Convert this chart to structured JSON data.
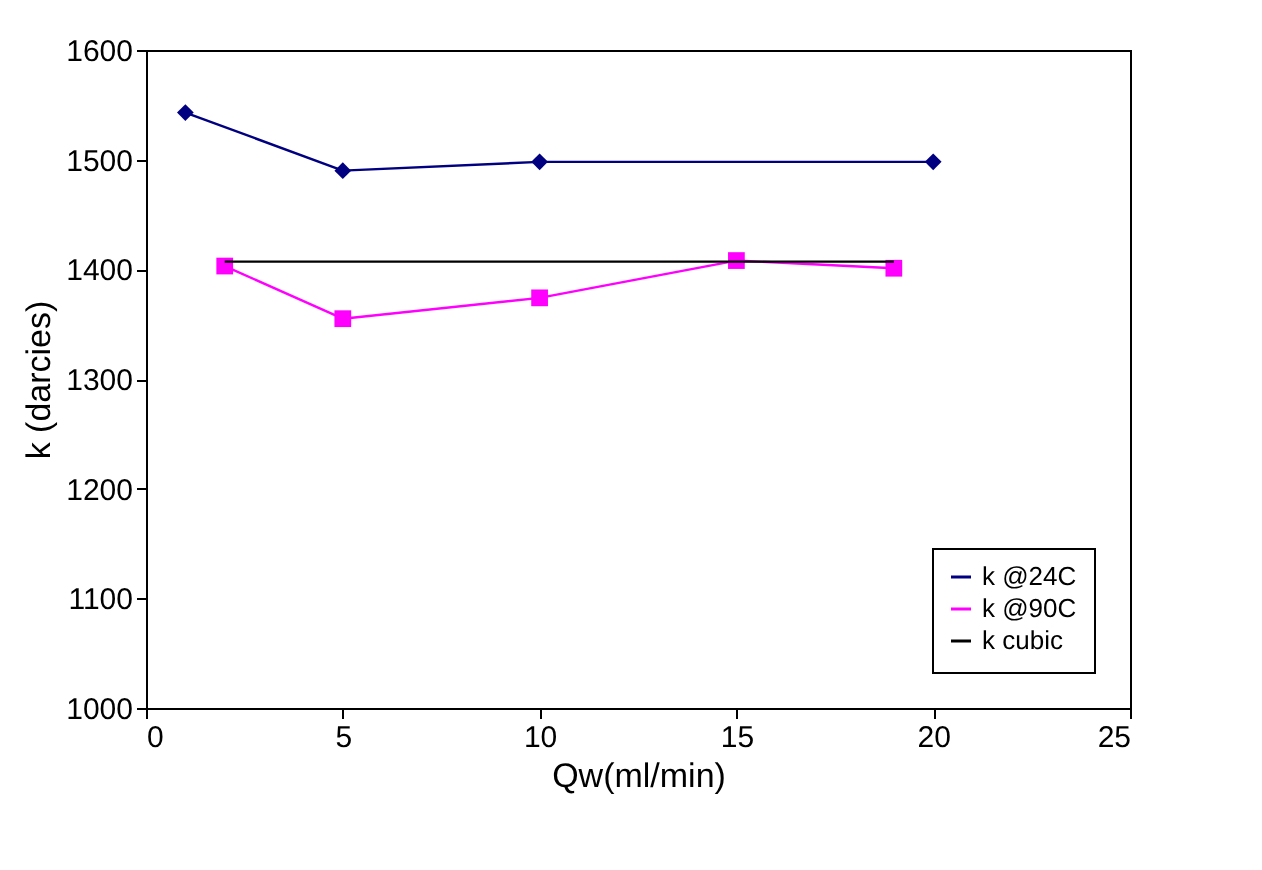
{
  "chart_data": {
    "type": "line",
    "xlabel": "Qw(ml/min)",
    "ylabel": "k (darcies)",
    "xlim": [
      0,
      25
    ],
    "xticks": [
      0,
      5,
      10,
      15,
      20,
      25
    ],
    "ylim": [
      1000,
      1600
    ],
    "yticks": [
      1000,
      1100,
      1200,
      1300,
      1400,
      1500,
      1600
    ],
    "grid": false,
    "legend": "bottom right",
    "series": [
      {
        "name": "k @24C",
        "color": "#000080",
        "marker": "diamond",
        "x": [
          1,
          5,
          10,
          20
        ],
        "values": [
          1543,
          1490,
          1498,
          1498
        ]
      },
      {
        "name": "k @90C",
        "color": "#ff00ff",
        "marker": "square",
        "x": [
          2,
          5,
          10,
          15,
          19
        ],
        "values": [
          1403,
          1355,
          1374,
          1408,
          1401
        ]
      },
      {
        "name": "k cubic",
        "color": "#000000",
        "marker": "none",
        "x": [
          2,
          19
        ],
        "values": [
          1407,
          1407
        ]
      }
    ]
  }
}
